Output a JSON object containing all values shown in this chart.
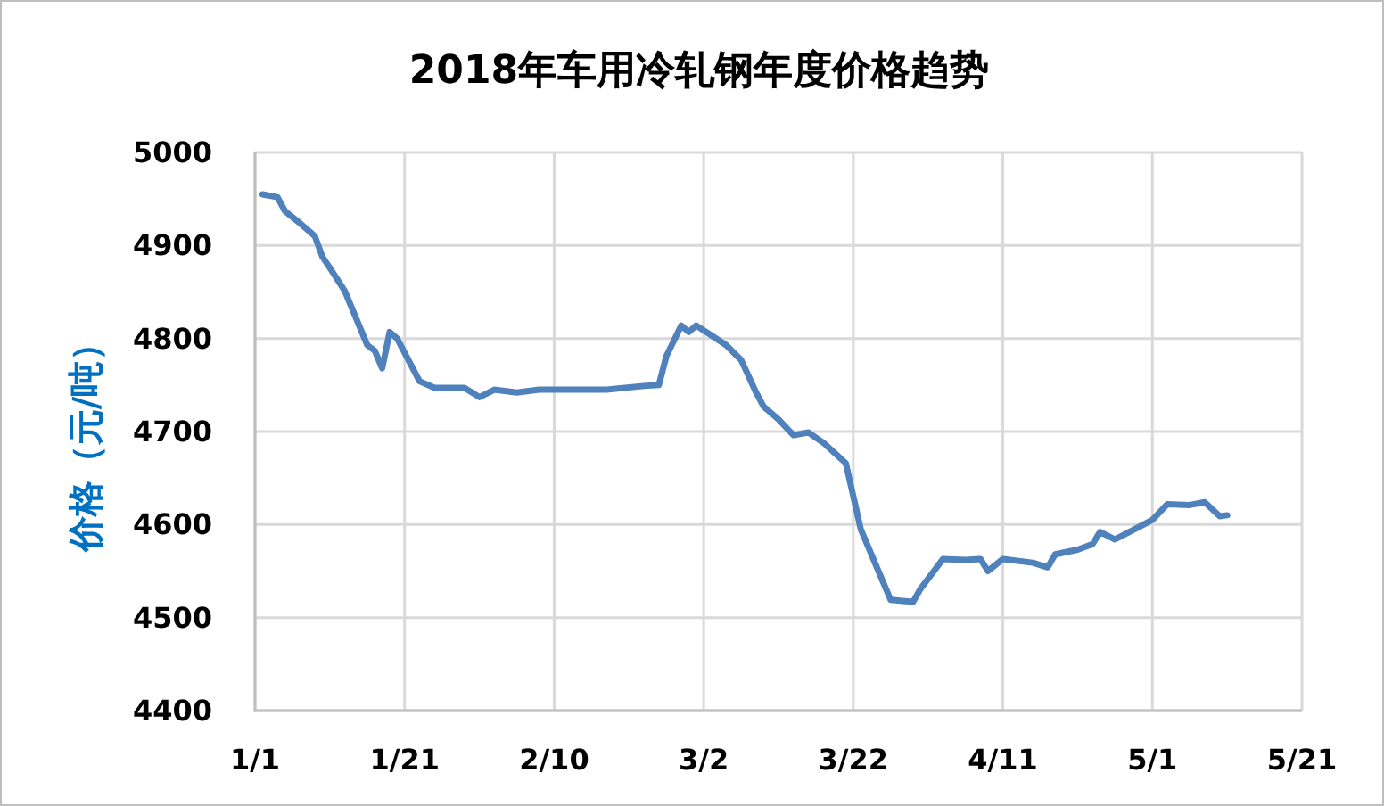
{
  "chart_data": {
    "type": "line",
    "title": "2018年车用冷轧钢年度价格趋势",
    "ylabel": "价格（元/吨）",
    "x": [
      "2018-01-02",
      "2018-01-04",
      "2018-01-05",
      "2018-01-07",
      "2018-01-09",
      "2018-01-10",
      "2018-01-11",
      "2018-01-13",
      "2018-01-16",
      "2018-01-17",
      "2018-01-18",
      "2018-01-19",
      "2018-01-20",
      "2018-01-23",
      "2018-01-25",
      "2018-01-29",
      "2018-01-31",
      "2018-02-02",
      "2018-02-05",
      "2018-02-08",
      "2018-02-17",
      "2018-02-22",
      "2018-02-24",
      "2018-02-25",
      "2018-02-27",
      "2018-02-28",
      "2018-03-01",
      "2018-03-05",
      "2018-03-07",
      "2018-03-09",
      "2018-03-10",
      "2018-03-12",
      "2018-03-14",
      "2018-03-16",
      "2018-03-18",
      "2018-03-21",
      "2018-03-23",
      "2018-03-27",
      "2018-03-30",
      "2018-03-31",
      "2018-04-03",
      "2018-04-06",
      "2018-04-08",
      "2018-04-09",
      "2018-04-11",
      "2018-04-15",
      "2018-04-17",
      "2018-04-18",
      "2018-04-21",
      "2018-04-23",
      "2018-04-24",
      "2018-04-26",
      "2018-05-01",
      "2018-05-03",
      "2018-05-06",
      "2018-05-08",
      "2018-05-10",
      "2018-05-11"
    ],
    "series": [
      {
        "color": "#4f81bd",
        "values": [
          4955,
          4952,
          4937,
          4924,
          4910,
          4888,
          4876,
          4851,
          4793,
          4787,
          4768,
          4807,
          4800,
          4754,
          4747,
          4747,
          4737,
          4745,
          4742,
          4745,
          4745,
          4749,
          4750,
          4781,
          4814,
          4807,
          4814,
          4793,
          4777,
          4742,
          4727,
          4713,
          4696,
          4699,
          4688,
          4666,
          4595,
          4519,
          4517,
          4531,
          4563,
          4562,
          4563,
          4550,
          4563,
          4559,
          4554,
          4568,
          4573,
          4579,
          4592,
          4584,
          4605,
          4622,
          4621,
          4624,
          4609,
          4610
        ]
      }
    ],
    "xlim": [
      "2018-01-01",
      "2018-05-21"
    ],
    "xticks": [
      {
        "value": "2018-01-01",
        "label": "1/1"
      },
      {
        "value": "2018-01-21",
        "label": "1/21"
      },
      {
        "value": "2018-02-10",
        "label": "2/10"
      },
      {
        "value": "2018-03-02",
        "label": "3/2"
      },
      {
        "value": "2018-03-22",
        "label": "3/22"
      },
      {
        "value": "2018-04-11",
        "label": "4/11"
      },
      {
        "value": "2018-05-01",
        "label": "5/1"
      },
      {
        "value": "2018-05-21",
        "label": "5/21"
      }
    ],
    "ylim": [
      4400,
      5000
    ],
    "yticks": [
      4400,
      4500,
      4600,
      4700,
      4800,
      4900,
      5000
    ],
    "grid": true,
    "line_style": "solid"
  }
}
